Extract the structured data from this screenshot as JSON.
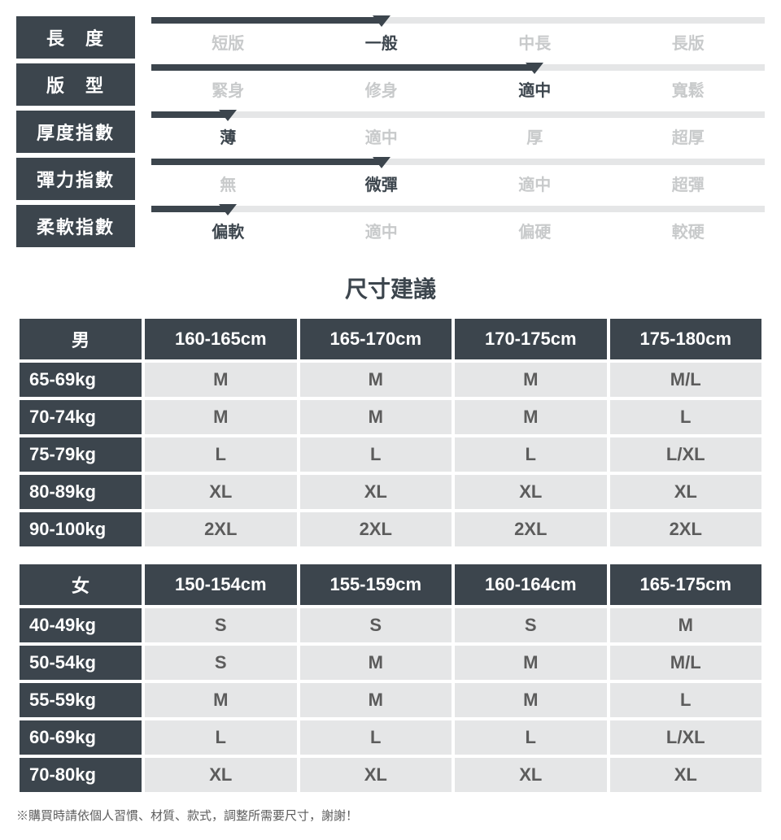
{
  "attributes": [
    {
      "label": "長　度",
      "spaced": false,
      "options": [
        "短版",
        "一般",
        "中長",
        "長版"
      ],
      "selected_index": 1
    },
    {
      "label": "版　型",
      "spaced": false,
      "options": [
        "緊身",
        "修身",
        "適中",
        "寬鬆"
      ],
      "selected_index": 2
    },
    {
      "label": "厚度指數",
      "spaced": false,
      "options": [
        "薄",
        "適中",
        "厚",
        "超厚"
      ],
      "selected_index": 0
    },
    {
      "label": "彈力指數",
      "spaced": false,
      "options": [
        "無",
        "微彈",
        "適中",
        "超彈"
      ],
      "selected_index": 1
    },
    {
      "label": "柔軟指數",
      "spaced": false,
      "options": [
        "偏軟",
        "適中",
        "偏硬",
        "較硬"
      ],
      "selected_index": 0
    }
  ],
  "attr_colors": {
    "label_bg": "#3c454d",
    "label_fg": "#ffffff",
    "bar_bg": "#e5e6e7",
    "bar_fill": "#3c454d",
    "opt_inactive": "#c8cacb",
    "opt_active": "#3c454d"
  },
  "section_title": "尺寸建議",
  "tables": [
    {
      "corner": "男",
      "columns": [
        "160-165cm",
        "165-170cm",
        "170-175cm",
        "175-180cm"
      ],
      "rows": [
        {
          "head": "65-69kg",
          "cells": [
            "M",
            "M",
            "M",
            "M/L"
          ]
        },
        {
          "head": "70-74kg",
          "cells": [
            "M",
            "M",
            "M",
            "L"
          ]
        },
        {
          "head": "75-79kg",
          "cells": [
            "L",
            "L",
            "L",
            "L/XL"
          ]
        },
        {
          "head": "80-89kg",
          "cells": [
            "XL",
            "XL",
            "XL",
            "XL"
          ]
        },
        {
          "head": "90-100kg",
          "cells": [
            "2XL",
            "2XL",
            "2XL",
            "2XL"
          ]
        }
      ]
    },
    {
      "corner": "女",
      "columns": [
        "150-154cm",
        "155-159cm",
        "160-164cm",
        "165-175cm"
      ],
      "rows": [
        {
          "head": "40-49kg",
          "cells": [
            "S",
            "S",
            "S",
            "M"
          ]
        },
        {
          "head": "50-54kg",
          "cells": [
            "S",
            "M",
            "M",
            "M/L"
          ]
        },
        {
          "head": "55-59kg",
          "cells": [
            "M",
            "M",
            "M",
            "L"
          ]
        },
        {
          "head": "60-69kg",
          "cells": [
            "L",
            "L",
            "L",
            "L/XL"
          ]
        },
        {
          "head": "70-80kg",
          "cells": [
            "XL",
            "XL",
            "XL",
            "XL"
          ]
        }
      ]
    }
  ],
  "table_colors": {
    "header_bg": "#3c454d",
    "header_fg": "#ffffff",
    "cell_bg": "#e5e6e7",
    "cell_fg": "#5c5c5c"
  },
  "footnote": "※購買時請依個人習慣、材質、款式，調整所需要尺寸，謝謝！"
}
